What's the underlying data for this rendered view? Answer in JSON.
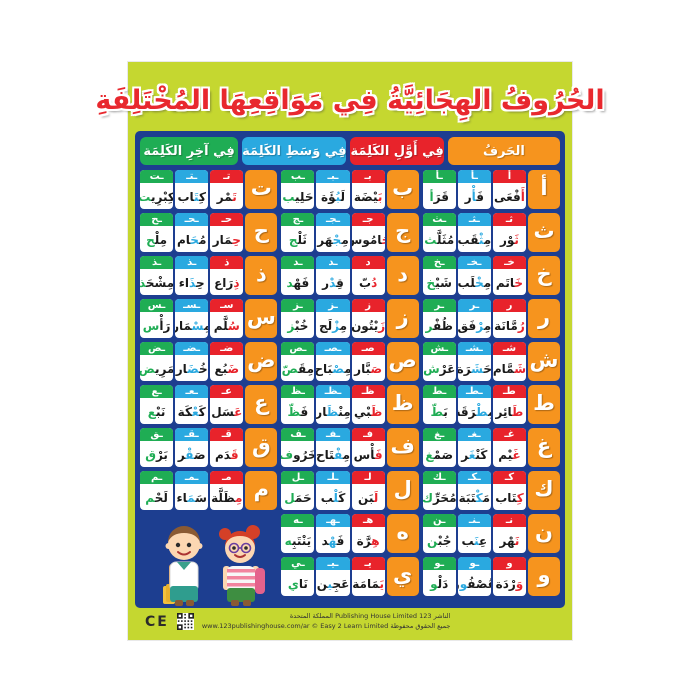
{
  "title": "الحُرُوفُ الهِجَائِيَّةُ فِي مَوَاقِعِهَا المُخْتَلِفَةِ",
  "header": {
    "cells": [
      {
        "id": "letter",
        "label": "الحَرفُ"
      },
      {
        "id": "initial",
        "label": "فِي أَوَّلِ الكَلِمَة"
      },
      {
        "id": "medial",
        "label": "فِي وَسَطِ الكَلِمَة"
      },
      {
        "id": "final",
        "label": "فِي آخِرِ الكَلِمَة"
      }
    ]
  },
  "colors": {
    "frame": "#c5d730",
    "table_bg": "#1d3e90",
    "letter_orange": "#f6941e",
    "initial_red": "#e8232b",
    "medial_blue": "#2aa9e0",
    "final_green": "#1fad54",
    "title_red": "#e8282e"
  },
  "rows": [
    {
      "sections": [
        {
          "letter": "أ",
          "cells": [
            {
              "form": "أ",
              "pre": "",
              "hl": "أَ",
              "post": "فْعَى"
            },
            {
              "form": "ـأ",
              "pre": "فَ",
              "hl": "أْ",
              "post": "ر"
            },
            {
              "form": "ـأ",
              "pre": "قَرَ",
              "hl": "أ",
              "post": ""
            }
          ]
        },
        {
          "letter": "ب",
          "cells": [
            {
              "form": "بـ",
              "pre": "",
              "hl": "بَ",
              "post": "يْضَة"
            },
            {
              "form": "ـبـ",
              "pre": "لَ",
              "hl": "بُ",
              "post": "ؤَة"
            },
            {
              "form": "ـب",
              "pre": "حَلِي",
              "hl": "ب",
              "post": ""
            }
          ]
        },
        {
          "letter": "ت",
          "cells": [
            {
              "form": "تـ",
              "pre": "",
              "hl": "تَ",
              "post": "مْر"
            },
            {
              "form": "ـتـ",
              "pre": "كِ",
              "hl": "تَ",
              "post": "اب"
            },
            {
              "form": "ـت",
              "pre": "كِبْرِي",
              "hl": "ت",
              "post": ""
            }
          ]
        }
      ]
    },
    {
      "sections": [
        {
          "letter": "ث",
          "cells": [
            {
              "form": "ثـ",
              "pre": "",
              "hl": "ثَ",
              "post": "وْر"
            },
            {
              "form": "ـثـ",
              "pre": "مِ",
              "hl": "ثْ",
              "post": "قَب"
            },
            {
              "form": "ـث",
              "pre": "مُثَلَّ",
              "hl": "ث",
              "post": ""
            }
          ]
        },
        {
          "letter": "ج",
          "cells": [
            {
              "form": "جـ",
              "pre": "",
              "hl": "جَ",
              "post": "امُوس"
            },
            {
              "form": "ـجـ",
              "pre": "مِ",
              "hl": "جْ",
              "post": "هَر"
            },
            {
              "form": "ـج",
              "pre": "ثَلْ",
              "hl": "ج",
              "post": ""
            }
          ]
        },
        {
          "letter": "ح",
          "cells": [
            {
              "form": "حـ",
              "pre": "",
              "hl": "حِ",
              "post": "مَار"
            },
            {
              "form": "ـحـ",
              "pre": "مُ",
              "hl": "حَ",
              "post": "ام"
            },
            {
              "form": "ـح",
              "pre": "مِلْ",
              "hl": "ح",
              "post": ""
            }
          ]
        }
      ]
    },
    {
      "sections": [
        {
          "letter": "خ",
          "cells": [
            {
              "form": "خـ",
              "pre": "",
              "hl": "خَ",
              "post": "اتَم"
            },
            {
              "form": "ـخـ",
              "pre": "مِ",
              "hl": "خْ",
              "post": "لَب"
            },
            {
              "form": "ـخ",
              "pre": "شَيْ",
              "hl": "خ",
              "post": ""
            }
          ]
        },
        {
          "letter": "د",
          "cells": [
            {
              "form": "د",
              "pre": "",
              "hl": "دُ",
              "post": "بّ"
            },
            {
              "form": "ـد",
              "pre": "قِ",
              "hl": "دْ",
              "post": "ر"
            },
            {
              "form": "ـد",
              "pre": "فَهْ",
              "hl": "د",
              "post": ""
            }
          ]
        },
        {
          "letter": "ذ",
          "cells": [
            {
              "form": "ذ",
              "pre": "",
              "hl": "ذِ",
              "post": "رَاع"
            },
            {
              "form": "ـذ",
              "pre": "حِ",
              "hl": "ذَ",
              "post": "اء"
            },
            {
              "form": "ـذ",
              "pre": "مِشْحَ",
              "hl": "ذ",
              "post": ""
            }
          ]
        }
      ]
    },
    {
      "sections": [
        {
          "letter": "ر",
          "cells": [
            {
              "form": "ر",
              "pre": "",
              "hl": "رُ",
              "post": "مَّانَة"
            },
            {
              "form": "ـر",
              "pre": "مِ",
              "hl": "رْ",
              "post": "فَق"
            },
            {
              "form": "ـر",
              "pre": "ظُفْ",
              "hl": "ر",
              "post": ""
            }
          ]
        },
        {
          "letter": "ز",
          "cells": [
            {
              "form": "ز",
              "pre": "",
              "hl": "زَ",
              "post": "يْتُون"
            },
            {
              "form": "ـز",
              "pre": "مِ",
              "hl": "زْ",
              "post": "لَج"
            },
            {
              "form": "ـز",
              "pre": "خُبْ",
              "hl": "ز",
              "post": ""
            }
          ]
        },
        {
          "letter": "س",
          "cells": [
            {
              "form": "سـ",
              "pre": "",
              "hl": "سُ",
              "post": "لَّم"
            },
            {
              "form": "ـسـ",
              "pre": "مِ",
              "hl": "سْ",
              "post": "مَار"
            },
            {
              "form": "ـس",
              "pre": "رَأْ",
              "hl": "س",
              "post": ""
            }
          ]
        }
      ]
    },
    {
      "sections": [
        {
          "letter": "ش",
          "cells": [
            {
              "form": "شـ",
              "pre": "",
              "hl": "شَ",
              "post": "مَّام"
            },
            {
              "form": "ـشـ",
              "pre": "حَ",
              "hl": "شَ",
              "post": "رَة"
            },
            {
              "form": "ـش",
              "pre": "عَرْ",
              "hl": "ش",
              "post": ""
            }
          ]
        },
        {
          "letter": "ص",
          "cells": [
            {
              "form": "صـ",
              "pre": "",
              "hl": "صَ",
              "post": "بَّار"
            },
            {
              "form": "ـصـ",
              "pre": "مِ",
              "hl": "صْ",
              "post": "بَاح"
            },
            {
              "form": "ـص",
              "pre": "مِقَ",
              "hl": "صّ",
              "post": ""
            }
          ]
        },
        {
          "letter": "ض",
          "cells": [
            {
              "form": "ضـ",
              "pre": "",
              "hl": "ضَ",
              "post": "بُع"
            },
            {
              "form": "ـضـ",
              "pre": "خُ",
              "hl": "ضَ",
              "post": "ار"
            },
            {
              "form": "ـض",
              "pre": "مَرِي",
              "hl": "ض",
              "post": ""
            }
          ]
        }
      ]
    },
    {
      "sections": [
        {
          "letter": "ط",
          "cells": [
            {
              "form": "طـ",
              "pre": "",
              "hl": "طَ",
              "post": "ائِر"
            },
            {
              "form": "ـطـ",
              "pre": "مِ",
              "hl": "طْ",
              "post": "رَقَة"
            },
            {
              "form": "ـط",
              "pre": "بَ",
              "hl": "طّ",
              "post": ""
            }
          ]
        },
        {
          "letter": "ظ",
          "cells": [
            {
              "form": "ظـ",
              "pre": "",
              "hl": "ظَ",
              "post": "بْي"
            },
            {
              "form": "ـظـ",
              "pre": "مِنْ",
              "hl": "ظَ",
              "post": "ار"
            },
            {
              "form": "ـظ",
              "pre": "فَ",
              "hl": "ظّ",
              "post": ""
            }
          ]
        },
        {
          "letter": "ع",
          "cells": [
            {
              "form": "عـ",
              "pre": "",
              "hl": "عَ",
              "post": "سَل"
            },
            {
              "form": "ـعـ",
              "pre": "كَ",
              "hl": "عْ",
              "post": "كَة"
            },
            {
              "form": "ـع",
              "pre": "نَبْ",
              "hl": "ع",
              "post": ""
            }
          ]
        }
      ]
    },
    {
      "sections": [
        {
          "letter": "غ",
          "cells": [
            {
              "form": "غـ",
              "pre": "",
              "hl": "غَ",
              "post": "يْم"
            },
            {
              "form": "ـغـ",
              "pre": "كَنْ",
              "hl": "غَ",
              "post": "ر"
            },
            {
              "form": "ـغ",
              "pre": "صَمْ",
              "hl": "غ",
              "post": ""
            }
          ]
        },
        {
          "letter": "ف",
          "cells": [
            {
              "form": "فـ",
              "pre": "",
              "hl": "فَ",
              "post": "أْس"
            },
            {
              "form": "ـفـ",
              "pre": "مِ",
              "hl": "فْ",
              "post": "تَاح"
            },
            {
              "form": "ـف",
              "pre": "خَرُو",
              "hl": "ف",
              "post": ""
            }
          ]
        },
        {
          "letter": "ق",
          "cells": [
            {
              "form": "قـ",
              "pre": "",
              "hl": "قَ",
              "post": "دَم"
            },
            {
              "form": "ـقـ",
              "pre": "صَ",
              "hl": "قْ",
              "post": "ر"
            },
            {
              "form": "ـق",
              "pre": "بَرْ",
              "hl": "ق",
              "post": ""
            }
          ]
        }
      ]
    },
    {
      "sections": [
        {
          "letter": "ك",
          "cells": [
            {
              "form": "كـ",
              "pre": "",
              "hl": "كِ",
              "post": "تَاب"
            },
            {
              "form": "ـكـ",
              "pre": "مَ",
              "hl": "كْ",
              "post": "تَبَة"
            },
            {
              "form": "ـك",
              "pre": "مُحَرِّ",
              "hl": "ك",
              "post": ""
            }
          ]
        },
        {
          "letter": "ل",
          "cells": [
            {
              "form": "لـ",
              "pre": "",
              "hl": "لَ",
              "post": "بَن"
            },
            {
              "form": "ـلـ",
              "pre": "كَ",
              "hl": "لْ",
              "post": "ب"
            },
            {
              "form": "ـل",
              "pre": "حَمَ",
              "hl": "ل",
              "post": ""
            }
          ]
        },
        {
          "letter": "م",
          "cells": [
            {
              "form": "مـ",
              "pre": "",
              "hl": "مِ",
              "post": "ظَلَّة"
            },
            {
              "form": "ـمـ",
              "pre": "سَ",
              "hl": "مَ",
              "post": "اء"
            },
            {
              "form": "ـم",
              "pre": "لَحْ",
              "hl": "م",
              "post": ""
            }
          ]
        }
      ]
    },
    {
      "sections": [
        {
          "letter": "ن",
          "cells": [
            {
              "form": "نـ",
              "pre": "",
              "hl": "نَ",
              "post": "هْر"
            },
            {
              "form": "ـنـ",
              "pre": "عِ",
              "hl": "نَ",
              "post": "ب"
            },
            {
              "form": "ـن",
              "pre": "جُبْ",
              "hl": "ن",
              "post": ""
            }
          ]
        },
        {
          "letter": "ه",
          "cells": [
            {
              "form": "هـ",
              "pre": "",
              "hl": "هِ",
              "post": "رَّة"
            },
            {
              "form": "ـهـ",
              "pre": "فَ",
              "hl": "هْ",
              "post": "د"
            },
            {
              "form": "ـه",
              "pre": "يَنْتَبِ",
              "hl": "ه",
              "post": ""
            }
          ]
        }
      ]
    },
    {
      "sections": [
        {
          "letter": "و",
          "cells": [
            {
              "form": "و",
              "pre": "",
              "hl": "وَ",
              "post": "رْدَة"
            },
            {
              "form": "ـو",
              "pre": "عُصْفُ",
              "hl": "و",
              "post": "ر"
            },
            {
              "form": "ـو",
              "pre": "دَلْ",
              "hl": "و",
              "post": ""
            }
          ]
        },
        {
          "letter": "ي",
          "cells": [
            {
              "form": "يـ",
              "pre": "",
              "hl": "يَ",
              "post": "مَامَة"
            },
            {
              "form": "ـيـ",
              "pre": "عَجِ",
              "hl": "ي",
              "post": "ن"
            },
            {
              "form": "ـي",
              "pre": "نَا",
              "hl": "ي",
              "post": ""
            }
          ]
        }
      ]
    }
  ],
  "illustration": {
    "name": "two-children-cartoon"
  },
  "footer": {
    "ce_label": "CE",
    "line1": "الناشر 123 Publishing House Limited المملكة المتحدة",
    "line2": "www.123publishinghouse.com/ar © Easy 2 Learn Limited جميع الحقوق محفوظة"
  }
}
